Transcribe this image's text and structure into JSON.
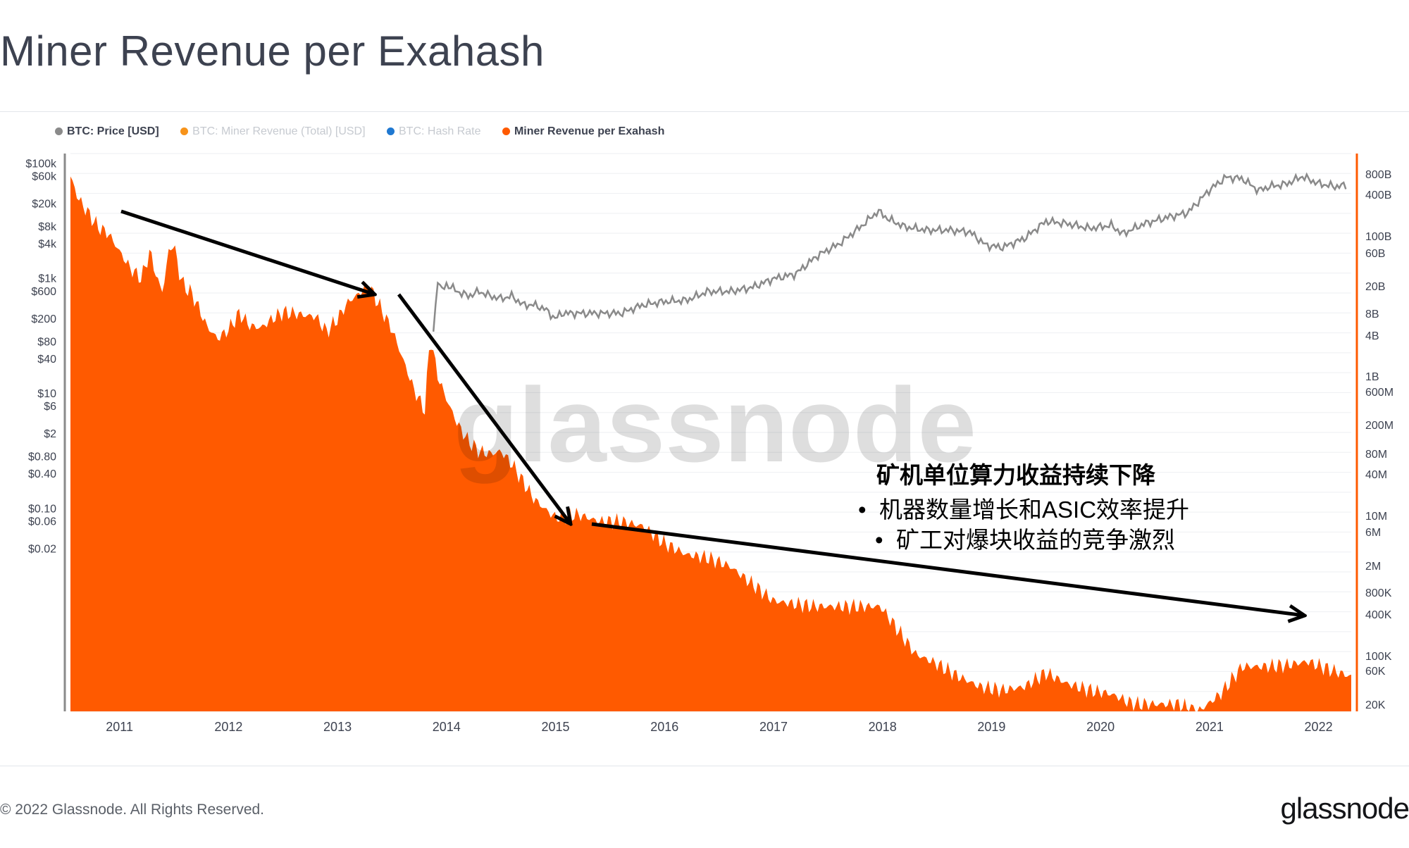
{
  "page": {
    "title": "Miner Revenue per Exahash",
    "copyright": "© 2022 Glassnode. All Rights Reserved.",
    "logo": "glassnode",
    "watermark": "glassnode"
  },
  "legend": [
    {
      "label": "BTC: Price [USD]",
      "color": "#8a8a8a",
      "active": true
    },
    {
      "label": "BTC: Miner Revenue (Total) [USD]",
      "color": "#f7931a",
      "active": false
    },
    {
      "label": "BTC: Hash Rate",
      "color": "#1f78d1",
      "active": false
    },
    {
      "label": "Miner Revenue per Exahash",
      "color": "#ff5a00",
      "active": true
    }
  ],
  "annotation": {
    "title": "矿机单位算力收益持续下降",
    "bullets": [
      "机器数量增长和ASIC效率提升",
      "矿工对爆块收益的竞争激烈"
    ],
    "bullet_glyph": "•"
  },
  "chart_data": {
    "type": "area",
    "x_ticks": [
      "2011",
      "2012",
      "2013",
      "2014",
      "2015",
      "2016",
      "2017",
      "2018",
      "2019",
      "2020",
      "2021",
      "2022"
    ],
    "x_range": [
      2010.55,
      2022.3
    ],
    "y_left_scale": "log",
    "y_left_ticks": [
      {
        "label": "$100k",
        "value": 100000
      },
      {
        "label": "$60k",
        "value": 60000
      },
      {
        "label": "$20k",
        "value": 20000
      },
      {
        "label": "$8k",
        "value": 8000
      },
      {
        "label": "$4k",
        "value": 4000
      },
      {
        "label": "$1k",
        "value": 1000
      },
      {
        "label": "$600",
        "value": 600
      },
      {
        "label": "$200",
        "value": 200
      },
      {
        "label": "$80",
        "value": 80
      },
      {
        "label": "$40",
        "value": 40
      },
      {
        "label": "$10",
        "value": 10
      },
      {
        "label": "$6",
        "value": 6
      },
      {
        "label": "$2",
        "value": 2
      },
      {
        "label": "$0.80",
        "value": 0.8
      },
      {
        "label": "$0.40",
        "value": 0.4
      },
      {
        "label": "$0.10",
        "value": 0.1
      },
      {
        "label": "$0.06",
        "value": 0.06
      },
      {
        "label": "$0.02",
        "value": 0.02
      }
    ],
    "y_right_scale": "log",
    "y_right_ticks": [
      "800B",
      "400B",
      "100B",
      "60B",
      "20B",
      "8B",
      "4B",
      "1B",
      "600M",
      "200M",
      "80M",
      "40M",
      "10M",
      "6M",
      "2M",
      "800K",
      "400K",
      "100K",
      "60K",
      "20K"
    ],
    "grid": true,
    "series": [
      {
        "name": "Miner Revenue per Exahash",
        "axis": "left",
        "style": "area",
        "color": "#ff5a00",
        "x": [
          2010.55,
          2010.62,
          2010.7,
          2010.8,
          2010.9,
          2011.0,
          2011.1,
          2011.2,
          2011.28,
          2011.35,
          2011.4,
          2011.45,
          2011.5,
          2011.55,
          2011.6,
          2011.65,
          2011.7,
          2011.8,
          2011.9,
          2012.0,
          2012.1,
          2012.2,
          2012.3,
          2012.4,
          2012.5,
          2012.6,
          2012.7,
          2012.8,
          2012.9,
          2013.0,
          2013.1,
          2013.2,
          2013.28,
          2013.35,
          2013.42,
          2013.5,
          2013.6,
          2013.7,
          2013.8,
          2013.85,
          2013.92,
          2014.0,
          2014.1,
          2014.2,
          2014.3,
          2014.4,
          2014.5,
          2014.6,
          2014.7,
          2014.8,
          2014.9,
          2015.0,
          2015.2,
          2015.4,
          2015.6,
          2015.8,
          2016.0,
          2016.2,
          2016.4,
          2016.6,
          2016.8,
          2017.0,
          2017.2,
          2017.4,
          2017.6,
          2017.8,
          2017.98,
          2018.1,
          2018.3,
          2018.5,
          2018.7,
          2018.9,
          2019.1,
          2019.3,
          2019.5,
          2019.7,
          2019.9,
          2020.1,
          2020.3,
          2020.5,
          2020.7,
          2020.9,
          2021.1,
          2021.3,
          2021.5,
          2021.7,
          2021.9,
          2022.1,
          2022.3
        ],
        "y": [
          60000,
          25000,
          15000,
          8000,
          6000,
          3000,
          1500,
          1000,
          3000,
          900,
          600,
          3000,
          4000,
          1200,
          700,
          600,
          400,
          150,
          90,
          130,
          250,
          150,
          140,
          200,
          260,
          250,
          230,
          220,
          120,
          200,
          400,
          550,
          800,
          450,
          250,
          130,
          40,
          12,
          5,
          100,
          20,
          8,
          3,
          1.5,
          1.0,
          0.9,
          1.0,
          0.6,
          0.3,
          0.15,
          0.1,
          0.07,
          0.08,
          0.06,
          0.06,
          0.05,
          0.025,
          0.016,
          0.014,
          0.01,
          0.005,
          0.0025,
          0.0022,
          0.002,
          0.002,
          0.002,
          0.002,
          0.001,
          0.0003,
          0.0002,
          0.00012,
          8e-05,
          7e-05,
          8e-05,
          0.00014,
          9e-05,
          7e-05,
          6e-05,
          4e-05,
          4e-05,
          4e-05,
          3e-05,
          6e-05,
          0.00018,
          0.00018,
          0.00019,
          0.00022,
          0.00016,
          0.00012
        ]
      },
      {
        "name": "BTC: Price [USD]",
        "axis": "left",
        "style": "line",
        "color": "#8a8a8a",
        "x": [
          2013.88,
          2013.92,
          2013.95,
          2014.0,
          2014.1,
          2014.2,
          2014.3,
          2014.4,
          2014.5,
          2014.6,
          2014.7,
          2014.8,
          2014.9,
          2015.0,
          2015.05,
          2015.2,
          2015.4,
          2015.6,
          2015.8,
          2016.0,
          2016.2,
          2016.4,
          2016.6,
          2016.8,
          2017.0,
          2017.2,
          2017.4,
          2017.6,
          2017.8,
          2017.96,
          2018.05,
          2018.2,
          2018.4,
          2018.6,
          2018.8,
          2018.95,
          2019.1,
          2019.3,
          2019.5,
          2019.7,
          2019.9,
          2020.1,
          2020.2,
          2020.4,
          2020.6,
          2020.8,
          2021.0,
          2021.15,
          2021.3,
          2021.45,
          2021.55,
          2021.7,
          2021.85,
          2022.0,
          2022.15,
          2022.25
        ],
        "y": [
          120,
          1000,
          600,
          800,
          600,
          500,
          600,
          500,
          450,
          500,
          350,
          350,
          300,
          200,
          250,
          250,
          250,
          250,
          350,
          400,
          420,
          600,
          600,
          700,
          1000,
          1200,
          2500,
          4000,
          8000,
          15000,
          11000,
          8000,
          7000,
          7000,
          6500,
          3800,
          3500,
          5000,
          10000,
          9000,
          7500,
          8500,
          6000,
          9000,
          11500,
          14000,
          35000,
          58000,
          55000,
          34000,
          40000,
          44000,
          60000,
          45000,
          40000,
          42000
        ]
      }
    ]
  }
}
